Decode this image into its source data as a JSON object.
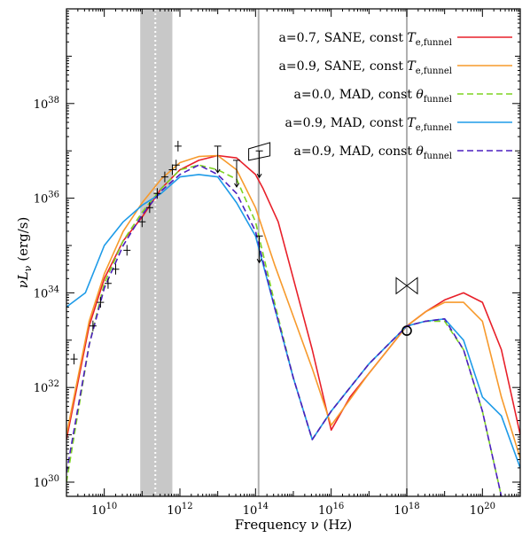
{
  "chart_data": {
    "type": "line",
    "title": "",
    "xlabel": "Frequency ν (Hz)",
    "ylabel_main": "νL",
    "ylabel_sub": "ν",
    "ylabel_unit": " (erg/s)",
    "x_scale": "log",
    "y_scale": "log",
    "xlim_log10": [
      9,
      21
    ],
    "ylim_log10": [
      29.7,
      40
    ],
    "x_ticks": [
      {
        "log": 10,
        "base": "10",
        "exp": "10"
      },
      {
        "log": 12,
        "base": "10",
        "exp": "12"
      },
      {
        "log": 14,
        "base": "10",
        "exp": "14"
      },
      {
        "log": 16,
        "base": "10",
        "exp": "16"
      },
      {
        "log": 18,
        "base": "10",
        "exp": "18"
      },
      {
        "log": 20,
        "base": "10",
        "exp": "20"
      }
    ],
    "y_ticks": [
      {
        "log": 30,
        "base": "10",
        "exp": "30"
      },
      {
        "log": 32,
        "base": "10",
        "exp": "32"
      },
      {
        "log": 34,
        "base": "10",
        "exp": "34"
      },
      {
        "log": 36,
        "base": "10",
        "exp": "36"
      },
      {
        "log": 38,
        "base": "10",
        "exp": "38"
      }
    ],
    "shaded_band_log10": [
      10.95,
      11.8
    ],
    "dotted_line_log10": 11.35,
    "vertical_lines_log10": [
      14.08,
      18.0
    ],
    "legend_position": "top-right",
    "series": [
      {
        "label_main": "a=0.7, SANE, const ",
        "label_sym": "T",
        "label_sub": "e,funnel",
        "color": "#e8202a",
        "dash": "solid",
        "points": [
          [
            9,
            30.9
          ],
          [
            9.6,
            33.3
          ],
          [
            10,
            34.3
          ],
          [
            10.5,
            35.1
          ],
          [
            11,
            35.6
          ],
          [
            11.5,
            36.2
          ],
          [
            12,
            36.6
          ],
          [
            12.5,
            36.8
          ],
          [
            13,
            36.9
          ],
          [
            13.5,
            36.85
          ],
          [
            14,
            36.5
          ],
          [
            14.2,
            36.2
          ],
          [
            14.6,
            35.5
          ],
          [
            15,
            34.3
          ],
          [
            15.5,
            32.8
          ],
          [
            16,
            31.1
          ],
          [
            16.5,
            31.8
          ],
          [
            17,
            32.3
          ],
          [
            17.5,
            32.8
          ],
          [
            18,
            33.3
          ],
          [
            18.5,
            33.6
          ],
          [
            19,
            33.85
          ],
          [
            19.5,
            34.0
          ],
          [
            20,
            33.8
          ],
          [
            20.5,
            32.8
          ],
          [
            21,
            31.0
          ]
        ]
      },
      {
        "label_main": "a=0.9, SANE, const ",
        "label_sym": "T",
        "label_sub": "e,funnel",
        "color": "#f79a2c",
        "dash": "solid",
        "points": [
          [
            9,
            31.0
          ],
          [
            9.6,
            33.4
          ],
          [
            10,
            34.4
          ],
          [
            10.5,
            35.3
          ],
          [
            11,
            35.9
          ],
          [
            11.5,
            36.4
          ],
          [
            12,
            36.75
          ],
          [
            12.5,
            36.88
          ],
          [
            13,
            36.9
          ],
          [
            13.5,
            36.6
          ],
          [
            14,
            35.8
          ],
          [
            14.5,
            34.6
          ],
          [
            15,
            33.5
          ],
          [
            15.5,
            32.4
          ],
          [
            16,
            31.2
          ],
          [
            16.5,
            31.75
          ],
          [
            17,
            32.3
          ],
          [
            17.5,
            32.8
          ],
          [
            18,
            33.3
          ],
          [
            18.5,
            33.6
          ],
          [
            19,
            33.8
          ],
          [
            19.5,
            33.8
          ],
          [
            20,
            33.4
          ],
          [
            20.5,
            31.8
          ],
          [
            21,
            30.5
          ]
        ]
      },
      {
        "label_main": "a=0.0, MAD,  const ",
        "label_sym": "θ",
        "label_sub": "funnel",
        "color": "#7ed321",
        "dash": "7,4",
        "points": [
          [
            9,
            30.0
          ],
          [
            9.6,
            32.9
          ],
          [
            10,
            34.2
          ],
          [
            10.5,
            35.1
          ],
          [
            11,
            35.7
          ],
          [
            11.5,
            36.2
          ],
          [
            12,
            36.6
          ],
          [
            12.5,
            36.7
          ],
          [
            13,
            36.6
          ],
          [
            13.5,
            36.4
          ],
          [
            14,
            35.5
          ],
          [
            14.5,
            33.8
          ],
          [
            15,
            32.2
          ],
          [
            15.5,
            30.9
          ],
          [
            16,
            31.5
          ],
          [
            16.5,
            32.0
          ],
          [
            17,
            32.5
          ],
          [
            17.5,
            32.9
          ],
          [
            18,
            33.3
          ],
          [
            18.5,
            33.4
          ],
          [
            19,
            33.4
          ],
          [
            19.5,
            32.8
          ],
          [
            20,
            31.5
          ],
          [
            20.5,
            29.7
          ]
        ]
      },
      {
        "label_main": "a=0.9, MAD,  const ",
        "label_sym": "T",
        "label_sub": "e,funnel",
        "color": "#1e9be8",
        "dash": "solid",
        "points": [
          [
            9,
            33.7
          ],
          [
            9.5,
            34.0
          ],
          [
            10,
            35.0
          ],
          [
            10.5,
            35.5
          ],
          [
            11,
            35.85
          ],
          [
            11.5,
            36.1
          ],
          [
            12,
            36.45
          ],
          [
            12.5,
            36.5
          ],
          [
            13,
            36.45
          ],
          [
            13.5,
            35.9
          ],
          [
            14,
            35.2
          ],
          [
            14.5,
            33.7
          ],
          [
            15,
            32.2
          ],
          [
            15.5,
            30.9
          ],
          [
            16,
            31.5
          ],
          [
            16.5,
            32.0
          ],
          [
            17,
            32.5
          ],
          [
            17.5,
            32.9
          ],
          [
            18,
            33.3
          ],
          [
            18.5,
            33.4
          ],
          [
            19,
            33.45
          ],
          [
            19.5,
            33.0
          ],
          [
            20,
            31.8
          ],
          [
            20.5,
            31.4
          ],
          [
            21,
            30.3
          ]
        ]
      },
      {
        "label_main": "a=0.9, MAD,  const ",
        "label_sym": "θ",
        "label_sub": "funnel",
        "color": "#4b1fbf",
        "dash": "7,4",
        "points": [
          [
            9,
            30.2
          ],
          [
            9.6,
            32.9
          ],
          [
            10,
            34.1
          ],
          [
            10.5,
            35.0
          ],
          [
            11,
            35.65
          ],
          [
            11.5,
            36.15
          ],
          [
            12,
            36.5
          ],
          [
            12.5,
            36.7
          ],
          [
            13,
            36.5
          ],
          [
            13.5,
            36.1
          ],
          [
            14,
            35.3
          ],
          [
            14.5,
            33.7
          ],
          [
            15,
            32.2
          ],
          [
            15.5,
            30.9
          ],
          [
            16,
            31.5
          ],
          [
            16.5,
            32.0
          ],
          [
            17,
            32.5
          ],
          [
            17.5,
            32.9
          ],
          [
            18,
            33.3
          ],
          [
            18.5,
            33.4
          ],
          [
            19,
            33.45
          ],
          [
            19.5,
            32.8
          ],
          [
            20,
            31.5
          ],
          [
            20.5,
            29.7
          ]
        ]
      }
    ],
    "observations": {
      "crosses": [
        [
          9.2,
          32.6
        ],
        [
          9.7,
          33.3
        ],
        [
          9.9,
          33.8
        ],
        [
          10.1,
          34.2
        ],
        [
          10.3,
          34.5
        ],
        [
          10.6,
          34.9
        ],
        [
          11.0,
          35.5
        ],
        [
          11.2,
          35.8
        ],
        [
          11.4,
          36.1
        ],
        [
          11.6,
          36.45
        ],
        [
          11.8,
          36.6
        ],
        [
          11.9,
          36.7
        ],
        [
          11.95,
          37.1
        ]
      ],
      "upper_limits": [
        [
          13,
          37.1
        ],
        [
          13.5,
          36.8
        ],
        [
          14.1,
          37.0
        ],
        [
          14.1,
          35.2
        ]
      ],
      "circle": [
        18.0,
        33.2
      ]
    }
  }
}
